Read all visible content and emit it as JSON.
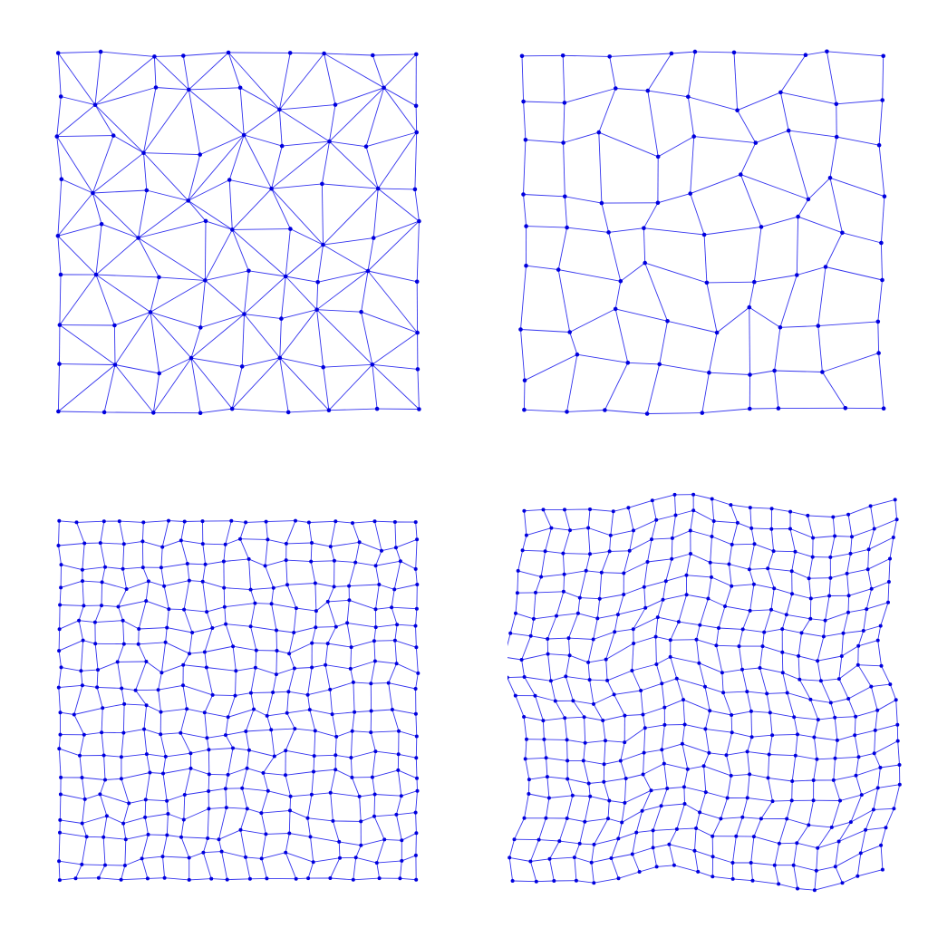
{
  "figure": {
    "edge_color": "#3333ee",
    "node_color": "#0000dd",
    "background": "#ffffff",
    "panel_order": [
      "triangle-mesh",
      "quad-mesh-coarse",
      "quad-mesh-fine",
      "quad-mesh-deformed"
    ]
  }
}
